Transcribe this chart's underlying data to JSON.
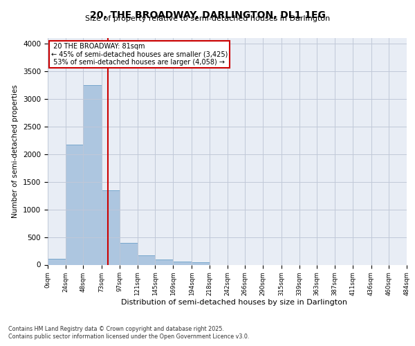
{
  "title_line1": "20, THE BROADWAY, DARLINGTON, DL1 1EG",
  "title_line2": "Size of property relative to semi-detached houses in Darlington",
  "xlabel": "Distribution of semi-detached houses by size in Darlington",
  "ylabel": "Number of semi-detached properties",
  "footer_line1": "Contains HM Land Registry data © Crown copyright and database right 2025.",
  "footer_line2": "Contains public sector information licensed under the Open Government Licence v3.0.",
  "property_size": 81,
  "property_label": "20 THE BROADWAY: 81sqm",
  "smaller_pct": "45%",
  "smaller_count": 3425,
  "larger_pct": "53%",
  "larger_count": 4058,
  "bin_edges": [
    0,
    24,
    48,
    73,
    97,
    121,
    145,
    169,
    194,
    218,
    242,
    266,
    290,
    315,
    339,
    363,
    387,
    411,
    436,
    460,
    484
  ],
  "bar_heights": [
    110,
    2175,
    3250,
    1350,
    400,
    165,
    100,
    60,
    45,
    0,
    0,
    0,
    0,
    0,
    0,
    0,
    0,
    0,
    0,
    0
  ],
  "bar_color": "#adc6e0",
  "bar_edge_color": "#6a9fc8",
  "red_line_color": "#cc0000",
  "grid_color": "#c0c8d8",
  "background_color": "#e8edf5",
  "annotation_box_color": "#cc0000",
  "ylim": [
    0,
    4100
  ],
  "yticks": [
    0,
    500,
    1000,
    1500,
    2000,
    2500,
    3000,
    3500,
    4000
  ],
  "tick_labels": [
    "0sqm",
    "24sqm",
    "48sqm",
    "73sqm",
    "97sqm",
    "121sqm",
    "145sqm",
    "169sqm",
    "194sqm",
    "218sqm",
    "242sqm",
    "266sqm",
    "290sqm",
    "315sqm",
    "339sqm",
    "363sqm",
    "387sqm",
    "411sqm",
    "436sqm",
    "460sqm",
    "484sqm"
  ]
}
